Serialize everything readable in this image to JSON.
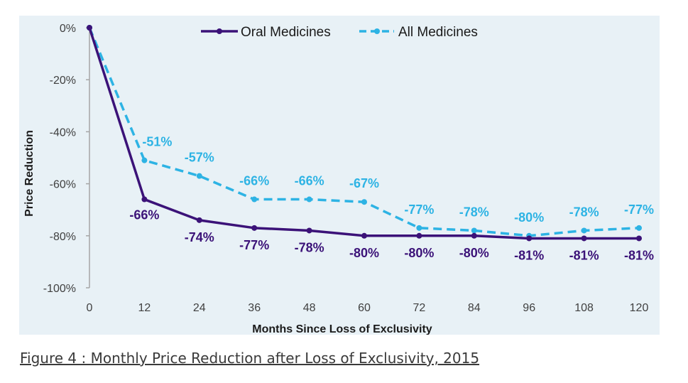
{
  "caption": "Figure 4 : Monthly Price Reduction after Loss of Exclusivity, 2015",
  "colors": {
    "oral": "#3b1278",
    "all": "#2db3e4",
    "background": "#e8f1f6",
    "axis": "#a6a6a6"
  },
  "chart_data": {
    "type": "line",
    "title": "",
    "xlabel": "Months Since Loss of Exclusivity",
    "ylabel": "Price Reduction",
    "x": [
      0,
      12,
      24,
      36,
      48,
      60,
      72,
      84,
      96,
      108,
      120
    ],
    "xticks": [
      "0",
      "12",
      "24",
      "36",
      "48",
      "60",
      "72",
      "84",
      "96",
      "108",
      "120"
    ],
    "ylim": [
      -100,
      0
    ],
    "yticks": [
      {
        "value": 0,
        "label": "0%"
      },
      {
        "value": -20,
        "label": "-20%"
      },
      {
        "value": -40,
        "label": "-40%"
      },
      {
        "value": -60,
        "label": "-60%"
      },
      {
        "value": -80,
        "label": "-80%"
      },
      {
        "value": -100,
        "label": "-100%"
      }
    ],
    "legend_position": "top",
    "series": [
      {
        "name": "Oral Medicines",
        "key": "oral",
        "style": "solid",
        "values": [
          0,
          -66,
          -74,
          -77,
          -78,
          -80,
          -80,
          -80,
          -81,
          -81,
          -81
        ],
        "labels": [
          "",
          "-66%",
          "-74%",
          "-77%",
          "-78%",
          "-80%",
          "-80%",
          "-80%",
          "-81%",
          "-81%",
          "-81%"
        ]
      },
      {
        "name": "All Medicines",
        "key": "all",
        "style": "dashed",
        "values": [
          0,
          -51,
          -57,
          -66,
          -66,
          -67,
          -77,
          -78,
          -80,
          -78,
          -77
        ],
        "labels": [
          "",
          "-51%",
          "-57%",
          "-66%",
          "-66%",
          "-67%",
          "-77%",
          "-78%",
          "-80%",
          "-78%",
          "-77%"
        ]
      }
    ]
  }
}
